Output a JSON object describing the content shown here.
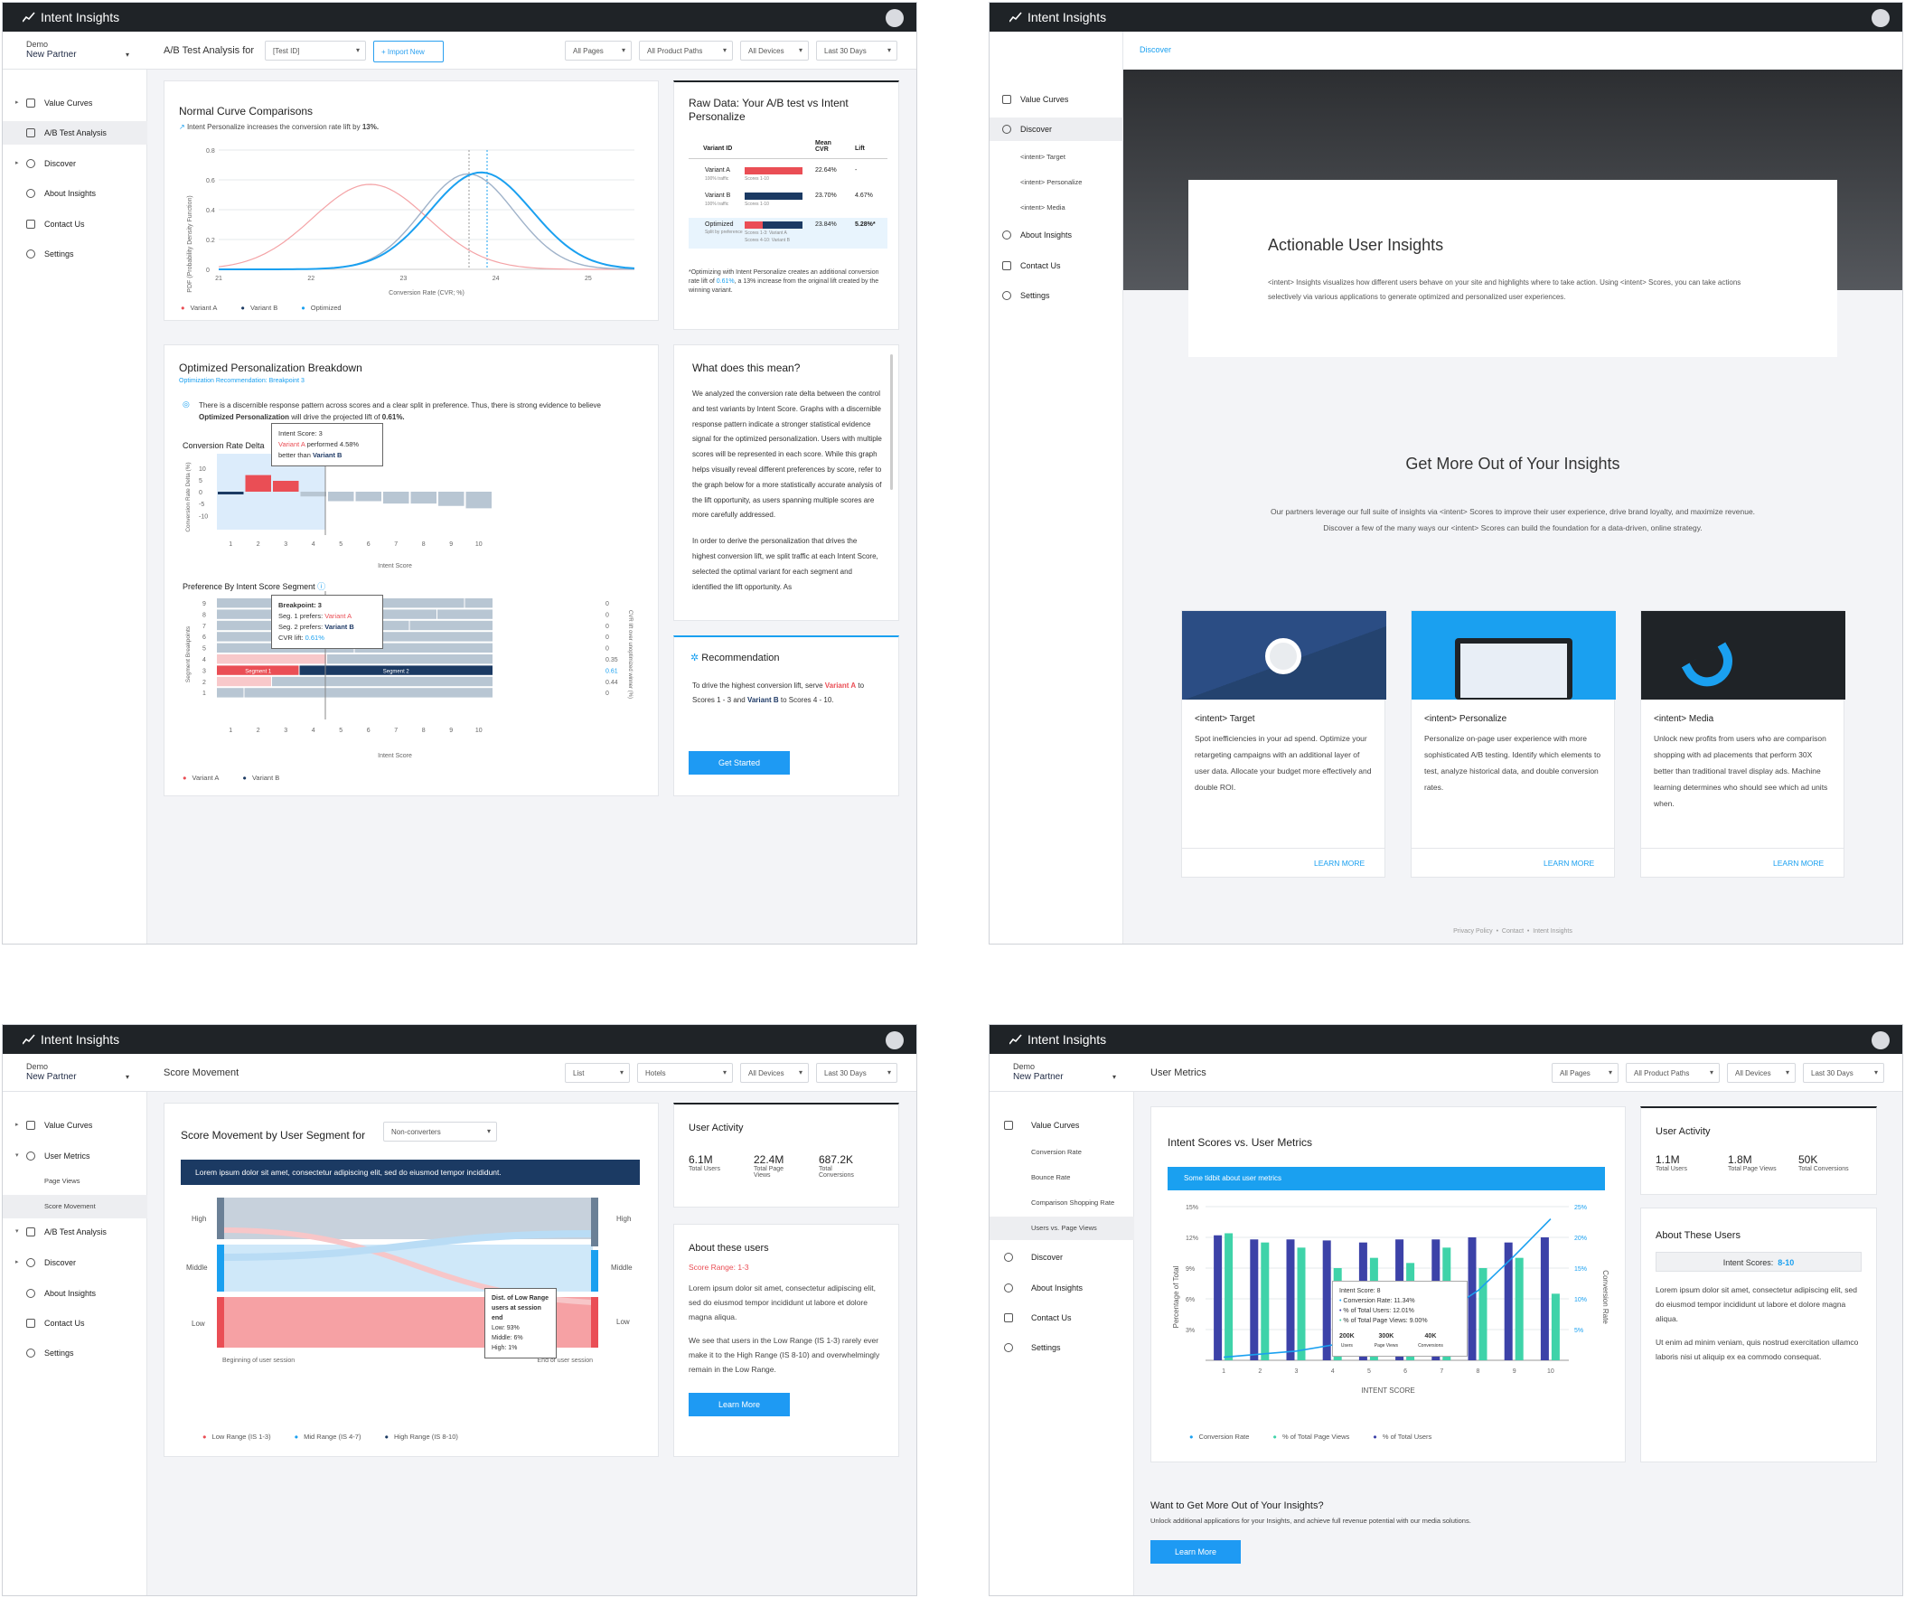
{
  "app_name": "Intent Insights",
  "account": {
    "org": "Demo",
    "partner": "New Partner"
  },
  "w1": {
    "page_title": "A/B Test Analysis for",
    "test_select": "[Test ID]",
    "import_label": "Import New",
    "filters": [
      "All Pages",
      "All Product Paths",
      "All Devices",
      "Last 30 Days"
    ],
    "nav": [
      "Value Curves",
      "A/B Test Analysis",
      "Discover",
      "About Insights",
      "Contact Us",
      "Settings"
    ],
    "normal_card": {
      "title": "Normal Curve Comparisons",
      "subtitle": "Intent Personalize increases the conversion rate lift by",
      "subtitle_value": "13%.",
      "xlabel": "Conversion Rate (CVR; %)",
      "ylabel": "PDF (Probability Density Function)",
      "yticks": [
        "0.8",
        "0.6",
        "0.4",
        "0.2",
        "0"
      ],
      "xticks": [
        "21",
        "22",
        "23",
        "24",
        "25"
      ],
      "legend": [
        "Variant A",
        "Variant B",
        "Optimized"
      ]
    },
    "raw_card": {
      "title": "Raw Data: Your A/B test vs Intent Personalize",
      "headers": [
        "Variant ID",
        "Mean CVR",
        "Lift"
      ],
      "rows": [
        {
          "name": "Variant A",
          "sub": "100% traffic",
          "scores": "Scores 1-10",
          "cvr": "22.64%",
          "lift": "-"
        },
        {
          "name": "Variant B",
          "sub": "100% traffic",
          "scores": "Scores 1-10",
          "cvr": "23.70%",
          "lift": "4.67%"
        },
        {
          "name": "Optimized",
          "sub": "Split by preference",
          "scores": "Scores 1-3: Variant A",
          "scores2": "Scores 4-10: Variant B",
          "cvr": "23.84%",
          "lift": "5.28%*"
        }
      ],
      "note_a": "*Optimizing with Intent Personalize creates an additional conversion rate lift of",
      "note_val": "0.61%",
      "note_b": ", a 13% increase from the original lift created by the winning variant."
    },
    "breakdown_card": {
      "title": "Optimized Personalization Breakdown",
      "rec_link": "Optimization Recommendation: Breakpoint 3",
      "desc_a": "There is a discernible response pattern across scores and a clear split in preference. Thus, there is strong evidence to believe",
      "desc_hidden": "Optimized Personalization",
      "desc_b": "will drive the projected lift of",
      "desc_val": "0.61%.",
      "delta_label": "Conversion Rate Delta",
      "delta_ylabel": "Conversion Rate Delta (%)",
      "delta_yticks": [
        "10",
        "5",
        "0",
        "-5",
        "-10"
      ],
      "xticks": [
        "1",
        "2",
        "3",
        "4",
        "5",
        "6",
        "7",
        "8",
        "9",
        "10"
      ],
      "xlabel": "Intent Score",
      "tooltip1": {
        "title": "Intent Score: 3",
        "a": "Variant A",
        "mid": "performed 4.58%",
        "b_pre": "better than",
        "b": "Variant B"
      },
      "pref_title": "Preference By Intent Score Segment",
      "pref_ylabel": "Segment Breakpoints",
      "pref_rlabel": "CVR lift over unoptimized winner (%)",
      "breakpoints": [
        "9",
        "8",
        "7",
        "6",
        "5",
        "4",
        "3",
        "2",
        "1"
      ],
      "lifts": [
        "0",
        "0",
        "0",
        "0",
        "0",
        "0.35",
        "0.61",
        "0.44",
        "0"
      ],
      "seg1": "Segment 1",
      "seg2": "Segment 2",
      "tooltip2": {
        "title": "Breakpoint: 3",
        "s1": "Seg. 1 prefers:",
        "s1v": "Variant A",
        "s2": "Seg. 2 prefers:",
        "s2v": "Variant B",
        "cv": "CVR lift:",
        "cvv": "0.61%"
      },
      "legend": [
        "Variant A",
        "Variant B"
      ]
    },
    "mean_card": {
      "title": "What does this mean?",
      "p1": "We analyzed the conversion rate delta between the control and test variants by Intent Score. Graphs with a discernible response pattern indicate a stronger statistical evidence signal for the optimized personalization. Users with multiple scores will be represented in each score. While this graph helps visually reveal different preferences by score, refer to the graph below for a more statistically accurate analysis of the lift opportunity, as users spanning multiple scores are more carefully addressed.",
      "p2": "In order to derive the personalization that drives the highest conversion lift, we split traffic at each Intent Score, selected the optimal variant for each segment and identified the lift opportunity. As"
    },
    "rec_card": {
      "title": "Recommendation",
      "t1": "To drive the highest conversion lift, serve",
      "va": "Variant A",
      "t2": "to Scores 1 - 3 and",
      "vb": "Variant B",
      "t3": "to Scores 4 - 10.",
      "button": "Get Started"
    }
  },
  "w2": {
    "breadcrumb": "Discover",
    "nav": [
      "Value Curves",
      "Discover",
      "<intent> Target",
      "<intent> Personalize",
      "<intent> Media",
      "About Insights",
      "Contact Us",
      "Settings"
    ],
    "hero_title": "Actionable User Insights",
    "hero_text": "<intent> Insights visualizes how different users behave on your site and highlights where to take action. Using <intent> Scores, you can take actions selectively via various applications to generate optimized and personalized user experiences.",
    "more_title": "Get More Out of Your Insights",
    "more_text1": "Our partners leverage our full suite of insights via <intent> Scores to improve their user experience, drive brand loyalty, and maximize revenue.",
    "more_text2": "Discover a few of the many ways our <intent> Scores can build the foundation for a data-driven, online strategy.",
    "cards": [
      {
        "title": "<intent> Target",
        "text": "Spot inefficiencies in your ad spend. Optimize your retargeting campaigns with an additional layer of user data. Allocate your budget more effectively and double ROI.",
        "link": "LEARN MORE"
      },
      {
        "title": "<intent> Personalize",
        "text": "Personalize on-page user experience with more sophisticated A/B testing. Identify which elements to test, analyze historical data, and double conversion rates.",
        "link": "LEARN MORE"
      },
      {
        "title": "<intent> Media",
        "text": "Unlock new profits from users who are comparison shopping with ad placements that perform 30X better than traditional travel display ads. Machine learning determines who should see which ad units when.",
        "link": "LEARN MORE"
      }
    ],
    "footer": [
      "Privacy Policy",
      "Contact",
      "Intent Insights"
    ]
  },
  "w3": {
    "page_title": "Score Movement",
    "filters": [
      "List",
      "Hotels",
      "All Devices",
      "Last 30 Days"
    ],
    "nav": [
      "Value Curves",
      "User Metrics",
      "Page Views",
      "Score Movement",
      "A/B Test Analysis",
      "Discover",
      "About Insights",
      "Contact Us",
      "Settings"
    ],
    "chart_title": "Score Movement by User Segment for",
    "segment_select": "Non-converters",
    "banner": "Lorem ipsum dolor sit amet, consectetur adipiscing elit, sed do eiusmod tempor incididunt.",
    "levels": [
      "High",
      "Middle",
      "Low"
    ],
    "start_label": "Beginning of user session",
    "end_label": "End of user session",
    "tooltip": {
      "title": "Dist. of Low Range users at session end",
      "low": "Low: 93%",
      "mid": "Middle: 6%",
      "high": "High: 1%"
    },
    "legend": [
      "Low Range (IS 1-3)",
      "Mid Range (IS 4-7)",
      "High Range (IS 8-10)"
    ],
    "activity": {
      "title": "User Activity",
      "stats": [
        {
          "v": "6.1M",
          "l": "Total Users"
        },
        {
          "v": "22.4M",
          "l": "Total Page Views"
        },
        {
          "v": "687.2K",
          "l": "Total Conversions"
        }
      ]
    },
    "about": {
      "title": "About these users",
      "range": "Score Range: 1-3",
      "p1": "Lorem ipsum dolor sit amet, consectetur adipiscing elit, sed do eiusmod tempor incididunt ut labore et dolore magna aliqua.",
      "p2": "We see that users in the Low Range (IS 1-3) rarely ever make it to the High Range (IS 8-10) and overwhelmingly remain in the Low Range.",
      "button": "Learn More"
    }
  },
  "w4": {
    "page_title": "User Metrics",
    "filters": [
      "All Pages",
      "All Product Paths",
      "All Devices",
      "Last 30 Days"
    ],
    "nav": [
      "Value Curves",
      "Conversion Rate",
      "Bounce Rate",
      "Comparison Shopping Rate",
      "Users vs. Page Views",
      "Discover",
      "About Insights",
      "Contact Us",
      "Settings"
    ],
    "chart_title": "Intent Scores vs. User Metrics",
    "banner": "Some tidbit about user metrics",
    "ylabel": "Percentage of Total",
    "rlabel": "Conversion Rate",
    "xlabel": "INTENT SCORE",
    "yticks": [
      "15%",
      "12%",
      "9%",
      "6%",
      "3%"
    ],
    "rticks": [
      "25%",
      "20%",
      "15%",
      "10%",
      "5%"
    ],
    "xticks": [
      "1",
      "2",
      "3",
      "4",
      "5",
      "6",
      "7",
      "8",
      "9",
      "10"
    ],
    "tooltip": {
      "title": "Intent Score: 8",
      "l1": "Conversion Rate: 11.34%",
      "l2": "% of Total Users: 12.01%",
      "l3": "% of Total Page Views: 9.00%",
      "s1v": "200K",
      "s1l": "Users",
      "s2v": "300K",
      "s2l": "Page Views",
      "s3v": "40K",
      "s3l": "Conversions"
    },
    "legend": [
      "Conversion Rate",
      "% of Total Page Views",
      "% of Total Users"
    ],
    "activity": {
      "title": "User Activity",
      "stats": [
        {
          "v": "1.1M",
          "l": "Total Users"
        },
        {
          "v": "1.8M",
          "l": "Total Page Views"
        },
        {
          "v": "50K",
          "l": "Total Conversions"
        }
      ]
    },
    "about": {
      "title": "About These Users",
      "score_label": "Intent Scores:",
      "score_val": "8-10",
      "p1": "Lorem ipsum dolor sit amet, consectetur adipiscing elit, sed do eiusmod tempor incididunt ut labore et dolore magna aliqua.",
      "p2": "Ut enim ad minim veniam, quis nostrud exercitation ullamco laboris nisi ut aliquip ex ea commodo consequat."
    },
    "cta_title": "Want to Get More Out of Your Insights?",
    "cta_text": "Unlock additional applications for your Insights, and achieve full revenue potential with our media solutions.",
    "cta_button": "Learn More"
  },
  "chart_data": [
    {
      "type": "line",
      "title": "Normal Curve Comparisons",
      "xlabel": "Conversion Rate (CVR; %)",
      "ylabel": "PDF (Probability Density Function)",
      "xlim": [
        21,
        25.5
      ],
      "ylim": [
        0,
        0.8
      ],
      "series": [
        {
          "name": "Variant A",
          "mean": 22.64,
          "peak": 0.57
        },
        {
          "name": "Variant B",
          "mean": 23.7,
          "peak": 0.64
        },
        {
          "name": "Optimized",
          "mean": 23.84,
          "peak": 0.65
        }
      ]
    },
    {
      "type": "bar",
      "title": "Conversion Rate Delta",
      "categories": [
        "1",
        "2",
        "3",
        "4",
        "5",
        "6",
        "7",
        "8",
        "9",
        "10"
      ],
      "values": [
        -1,
        7,
        4.58,
        -2,
        -4,
        -4,
        -5,
        -5,
        -6,
        -7
      ],
      "ylim": [
        -10,
        10
      ]
    },
    {
      "type": "bar",
      "title": "Intent Scores vs. User Metrics",
      "categories": [
        "1",
        "2",
        "3",
        "4",
        "5",
        "6",
        "7",
        "8",
        "9",
        "10"
      ],
      "series": [
        {
          "name": "% of Total Users",
          "values": [
            12.2,
            11.8,
            11.8,
            11.7,
            11.5,
            11.8,
            11.8,
            12.0,
            11.5,
            12.0
          ]
        },
        {
          "name": "% of Total Page Views",
          "values": [
            12.4,
            11.5,
            11.0,
            9.0,
            10.0,
            9.5,
            11.0,
            9.0,
            10.0,
            6.5
          ]
        },
        {
          "name": "Conversion Rate",
          "values": [
            0.5,
            1.0,
            1.5,
            2.5,
            4.0,
            5.5,
            7.5,
            11.34,
            17.0,
            23.0
          ]
        }
      ],
      "ylim": [
        0,
        15
      ],
      "y2lim": [
        0,
        25
      ]
    }
  ]
}
